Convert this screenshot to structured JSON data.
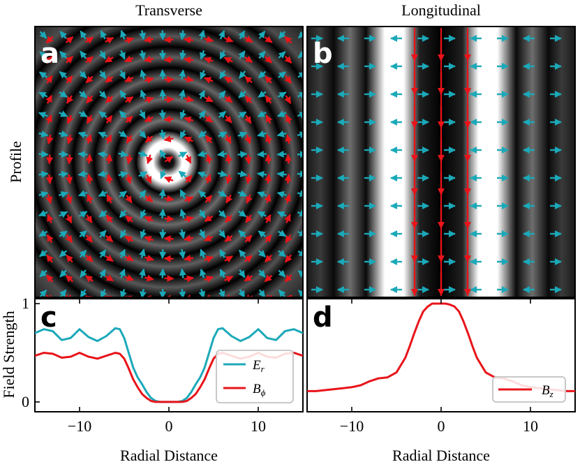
{
  "chart_data": [
    {
      "id": "a",
      "type": "heatmap",
      "panel_label": "a",
      "title": "Transverse",
      "ylabel": "Profile",
      "description_field": "radial ring intensity pattern with radial (cyan) and azimuthal (red) vector arrows",
      "x_range": [
        -15,
        15
      ],
      "y_range": [
        -15,
        15
      ],
      "ring_period": 4.5,
      "center_hole_radius": 1.2,
      "bright_ring_radius": 3.0
    },
    {
      "id": "b",
      "type": "heatmap",
      "panel_label": "b",
      "title": "Longitudinal",
      "description_field": "vertical stripe intensity pattern with horizontal (cyan) and vertical (red) arrows",
      "x_range": [
        -15,
        15
      ],
      "bright_stripes_x": [
        -3,
        3
      ],
      "dark_center_x": 0
    },
    {
      "id": "c",
      "type": "line",
      "panel_label": "c",
      "xlabel": "Radial Distance",
      "ylabel": "Field Strength",
      "xlim": [
        -15,
        15
      ],
      "ylim": [
        -0.1,
        1.05
      ],
      "xticks": [
        -10,
        0,
        10
      ],
      "xtick_labels": [
        "−10",
        "0",
        "10"
      ],
      "yticks": [
        0,
        1
      ],
      "ytick_labels": [
        "0",
        "1"
      ],
      "legend": "right",
      "series": [
        {
          "name": "E_r",
          "label_main": "E",
          "label_sub": "r",
          "color": "#1ba9b9",
          "x": [
            -15,
            -14,
            -13,
            -12,
            -11,
            -10,
            -9,
            -8,
            -7,
            -6,
            -5.5,
            -5,
            -4.5,
            -4,
            -3.5,
            -3,
            -2.5,
            -2,
            -1.5,
            -1,
            -0.5,
            0,
            0.5,
            1,
            1.5,
            2,
            2.5,
            3,
            3.5,
            4,
            4.5,
            5,
            5.5,
            6,
            7,
            8,
            9,
            10,
            11,
            12,
            13,
            14,
            15
          ],
          "values": [
            0.7,
            0.74,
            0.72,
            0.63,
            0.65,
            0.74,
            0.66,
            0.62,
            0.67,
            0.75,
            0.74,
            0.65,
            0.5,
            0.35,
            0.25,
            0.18,
            0.1,
            0.04,
            0.01,
            0.0,
            0.0,
            0.0,
            0.0,
            0.0,
            0.01,
            0.04,
            0.1,
            0.18,
            0.25,
            0.35,
            0.5,
            0.65,
            0.74,
            0.75,
            0.67,
            0.62,
            0.66,
            0.74,
            0.65,
            0.63,
            0.72,
            0.74,
            0.7
          ]
        },
        {
          "name": "B_phi",
          "label_main": "B",
          "label_sub": "ϕ",
          "color": "#e8141a",
          "x": [
            -15,
            -14,
            -13,
            -12,
            -11,
            -10,
            -9,
            -8,
            -7,
            -6,
            -5.5,
            -5,
            -4.5,
            -4,
            -3.5,
            -3,
            -2.5,
            -2,
            -1.5,
            -1,
            -0.5,
            0,
            0.5,
            1,
            1.5,
            2,
            2.5,
            3,
            3.5,
            4,
            4.5,
            5,
            5.5,
            6,
            7,
            8,
            9,
            10,
            11,
            12,
            13,
            14,
            15
          ],
          "values": [
            0.47,
            0.5,
            0.49,
            0.45,
            0.46,
            0.5,
            0.46,
            0.44,
            0.47,
            0.5,
            0.49,
            0.44,
            0.34,
            0.23,
            0.15,
            0.08,
            0.04,
            0.01,
            0.0,
            0.0,
            0.0,
            0.0,
            0.0,
            0.0,
            0.0,
            0.01,
            0.04,
            0.08,
            0.15,
            0.23,
            0.34,
            0.44,
            0.49,
            0.5,
            0.47,
            0.44,
            0.46,
            0.5,
            0.46,
            0.45,
            0.49,
            0.5,
            0.47
          ]
        }
      ]
    },
    {
      "id": "d",
      "type": "line",
      "panel_label": "d",
      "xlabel": "Radial Distance",
      "xlim": [
        -15,
        15
      ],
      "ylim": [
        -0.1,
        1.05
      ],
      "xticks": [
        -10,
        0,
        10
      ],
      "xtick_labels": [
        "−10",
        "0",
        "10"
      ],
      "legend": "lower right",
      "series": [
        {
          "name": "B_z",
          "label_main": "B",
          "label_sub": "z",
          "color": "#e8141a",
          "x": [
            -15,
            -14,
            -13,
            -12,
            -11,
            -10,
            -9,
            -8,
            -7,
            -6,
            -5,
            -4,
            -3.5,
            -3,
            -2.5,
            -2,
            -1.5,
            -1,
            -0.5,
            0,
            0.5,
            1,
            1.5,
            2,
            2.5,
            3,
            3.5,
            4,
            5,
            6,
            7,
            8,
            9,
            10,
            11,
            12,
            13,
            14,
            15
          ],
          "values": [
            0.11,
            0.11,
            0.12,
            0.13,
            0.14,
            0.15,
            0.17,
            0.21,
            0.24,
            0.25,
            0.3,
            0.45,
            0.57,
            0.7,
            0.82,
            0.92,
            0.97,
            1.0,
            1.0,
            1.0,
            1.0,
            0.99,
            0.97,
            0.92,
            0.82,
            0.7,
            0.57,
            0.45,
            0.3,
            0.25,
            0.24,
            0.21,
            0.17,
            0.15,
            0.14,
            0.13,
            0.12,
            0.11,
            0.11
          ]
        }
      ]
    }
  ]
}
